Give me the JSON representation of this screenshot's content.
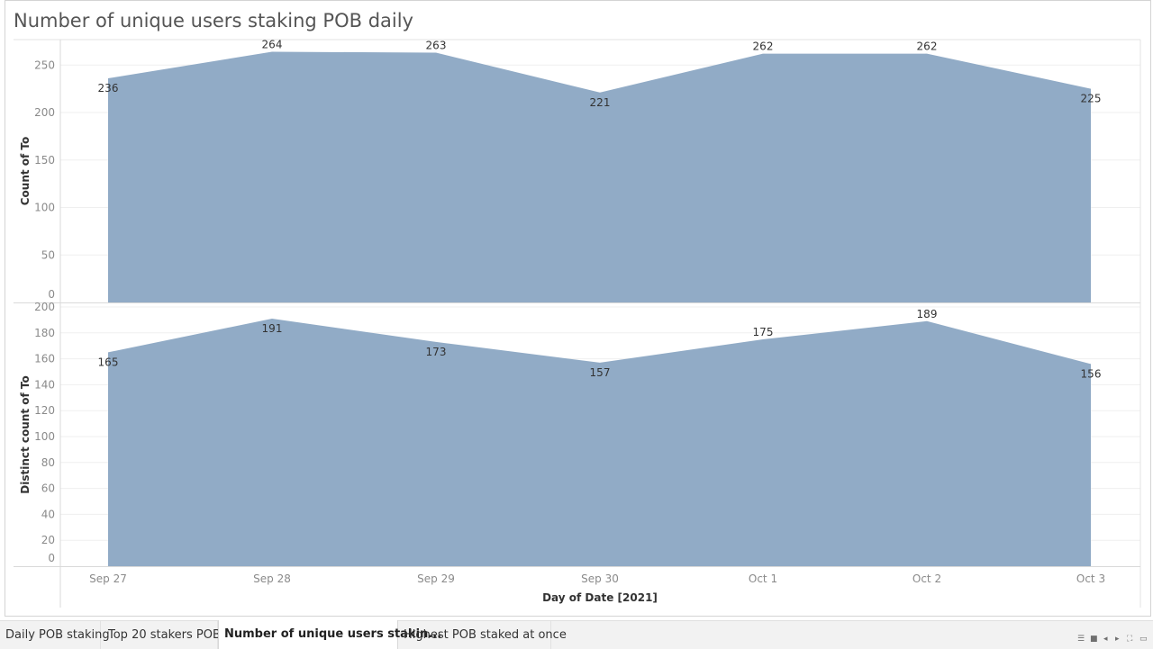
{
  "title": "Number of unique users staking POB daily",
  "tabs": [
    {
      "label": "Daily POB staking",
      "active": false
    },
    {
      "label": "Top 20 stakers POB",
      "active": false
    },
    {
      "label": "Number of unique users stakin...",
      "active": true
    },
    {
      "label": "Highest POB staked at once",
      "active": false
    }
  ],
  "tab_controls": [
    "list-view-icon",
    "grid-view-icon",
    "prev-sheet-icon",
    "next-sheet-icon",
    "fullscreen-icon",
    "present-icon"
  ],
  "chart_data": [
    {
      "type": "area",
      "x": [
        "Sep 27",
        "Sep 28",
        "Sep 29",
        "Sep 30",
        "Oct 1",
        "Oct 2",
        "Oct 3"
      ],
      "values": [
        236,
        264,
        263,
        221,
        262,
        262,
        225
      ],
      "ylabel": "Count of To",
      "yticks": [
        0,
        50,
        100,
        150,
        200,
        250
      ],
      "ylim": [
        0,
        270
      ],
      "color": "#91abc6",
      "grid": true
    },
    {
      "type": "area",
      "x": [
        "Sep 27",
        "Sep 28",
        "Sep 29",
        "Sep 30",
        "Oct 1",
        "Oct 2",
        "Oct 3"
      ],
      "values": [
        165,
        191,
        173,
        157,
        175,
        189,
        156
      ],
      "ylabel": "Distinct count of To",
      "yticks": [
        0,
        20,
        40,
        60,
        80,
        100,
        120,
        140,
        160,
        180,
        200
      ],
      "ylim": [
        0,
        200
      ],
      "xlabel": "Day of Date [2021]",
      "color": "#91abc6",
      "grid": true
    }
  ]
}
